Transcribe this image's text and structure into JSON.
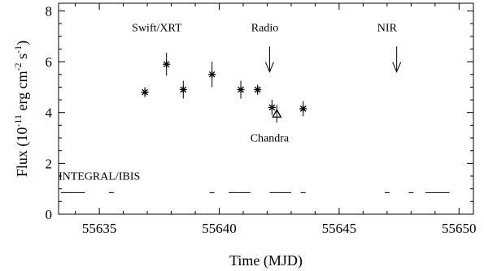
{
  "chart_data": {
    "type": "scatter",
    "xlabel": "Time (MJD)",
    "ylabel_main": "Flux (10",
    "ylabel_exp1": "-11",
    "ylabel_mid": " erg cm",
    "ylabel_exp2": "-2",
    "ylabel_s": " s",
    "ylabel_exp3": "-1",
    "ylabel_end": ")",
    "xlim": [
      55633.3,
      55650.6
    ],
    "ylim": [
      0,
      8.3
    ],
    "xticks": [
      {
        "value": 55635,
        "label": "55635"
      },
      {
        "value": 55640,
        "label": "55640"
      },
      {
        "value": 55645,
        "label": "55645"
      },
      {
        "value": 55650,
        "label": "55650"
      }
    ],
    "yticks": [
      {
        "value": 0,
        "label": "0"
      },
      {
        "value": 2,
        "label": "2"
      },
      {
        "value": 4,
        "label": "4"
      },
      {
        "value": 6,
        "label": "6"
      },
      {
        "value": 8,
        "label": "8"
      }
    ],
    "swift_xrt": [
      {
        "x": 55636.9,
        "y": 4.8,
        "err": 0.2
      },
      {
        "x": 55637.8,
        "y": 5.9,
        "err": 0.45
      },
      {
        "x": 55638.5,
        "y": 4.9,
        "err": 0.35
      },
      {
        "x": 55639.7,
        "y": 5.5,
        "err": 0.5
      },
      {
        "x": 55640.9,
        "y": 4.9,
        "err": 0.35
      },
      {
        "x": 55641.6,
        "y": 4.9,
        "err": 0.2
      },
      {
        "x": 55642.2,
        "y": 4.2,
        "err": 0.3
      },
      {
        "x": 55643.5,
        "y": 4.15,
        "err": 0.3
      }
    ],
    "chandra": [
      {
        "x": 55642.4,
        "y": 3.95,
        "err": 0.35
      }
    ],
    "integral_ibis": {
      "y": 0.85,
      "intervals": [
        [
          55633.4,
          55634.4
        ],
        [
          55635.4,
          55635.6
        ],
        [
          55639.6,
          55639.8
        ],
        [
          55640.4,
          55641.3
        ],
        [
          55642.1,
          55643.0
        ],
        [
          55643.4,
          55643.6
        ],
        [
          55646.9,
          55647.1
        ],
        [
          55647.9,
          55648.1
        ],
        [
          55648.6,
          55649.6
        ]
      ]
    },
    "arrows": [
      {
        "x": 55642.1,
        "y_top": 6.6,
        "y_bottom": 5.6
      },
      {
        "x": 55647.4,
        "y_top": 6.6,
        "y_bottom": 5.6
      }
    ],
    "annotations": [
      {
        "text": "Swift/XRT",
        "x": 55637.4,
        "y": 7.2
      },
      {
        "text": "Radio",
        "x": 55641.9,
        "y": 7.2
      },
      {
        "text": "NIR",
        "x": 55647.0,
        "y": 7.2
      },
      {
        "text": "Chandra",
        "x": 55642.1,
        "y": 2.85
      },
      {
        "text": "INTEGRAL/IBIS",
        "x": 55635.0,
        "y": 1.35
      }
    ]
  }
}
